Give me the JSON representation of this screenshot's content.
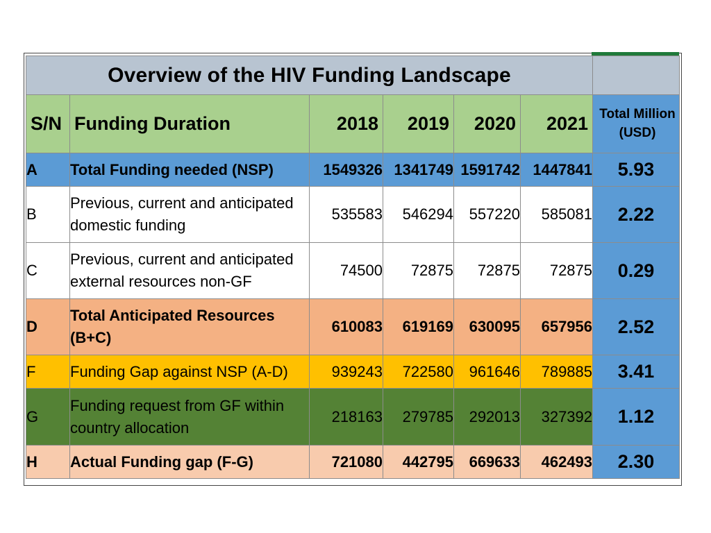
{
  "table": {
    "title": "Overview of the HIV Funding Landscape",
    "headers": {
      "sn": "S/N",
      "duration": "Funding Duration",
      "years": [
        "2018",
        "2019",
        "2020",
        "2021"
      ],
      "total_line1": "Total Million",
      "total_line2": "(USD)"
    },
    "rows": [
      {
        "sn": "A",
        "desc_line1": "Total Funding needed (NSP)",
        "desc_line2": "",
        "values": [
          "1549326",
          "1341749",
          "1591742",
          "1447841"
        ],
        "total": "5.93"
      },
      {
        "sn": "B",
        "desc_line1": "Previous, current and anticipated",
        "desc_line2": "domestic funding",
        "values": [
          "535583",
          "546294",
          "557220",
          "585081"
        ],
        "total": "2.22"
      },
      {
        "sn": "C",
        "desc_line1": "Previous, current and anticipated",
        "desc_line2": "external resources non-GF",
        "values": [
          "74500",
          "72875",
          "72875",
          "72875"
        ],
        "total": "0.29"
      },
      {
        "sn": "D",
        "desc_line1": "Total Anticipated Resources",
        "desc_line2": "(B+C)",
        "values": [
          "610083",
          "619169",
          "630095",
          "657956"
        ],
        "total": "2.52"
      },
      {
        "sn": "F",
        "desc_line1": "Funding Gap against NSP (A-D)",
        "desc_line2": "",
        "values": [
          "939243",
          "722580",
          "961646",
          "789885"
        ],
        "total": "3.41"
      },
      {
        "sn": "G",
        "desc_line1": "Funding request from GF within",
        "desc_line2": "country allocation",
        "values": [
          "218163",
          "279785",
          "292013",
          "327392"
        ],
        "total": "1.12"
      },
      {
        "sn": "H",
        "desc_line1": "Actual Funding gap (F-G)",
        "desc_line2": "",
        "values": [
          "721080",
          "442795",
          "669633",
          "462493"
        ],
        "total": "2.30"
      }
    ]
  },
  "colors": {
    "title_bg": "#b8c4d1",
    "header_bg": "#a9d08e",
    "row_A": "#5b9bd5",
    "row_D": "#f4b183",
    "row_F": "#ffc000",
    "row_G": "#548235",
    "row_H": "#f8cbad",
    "total_col": "#5b9bd5"
  }
}
